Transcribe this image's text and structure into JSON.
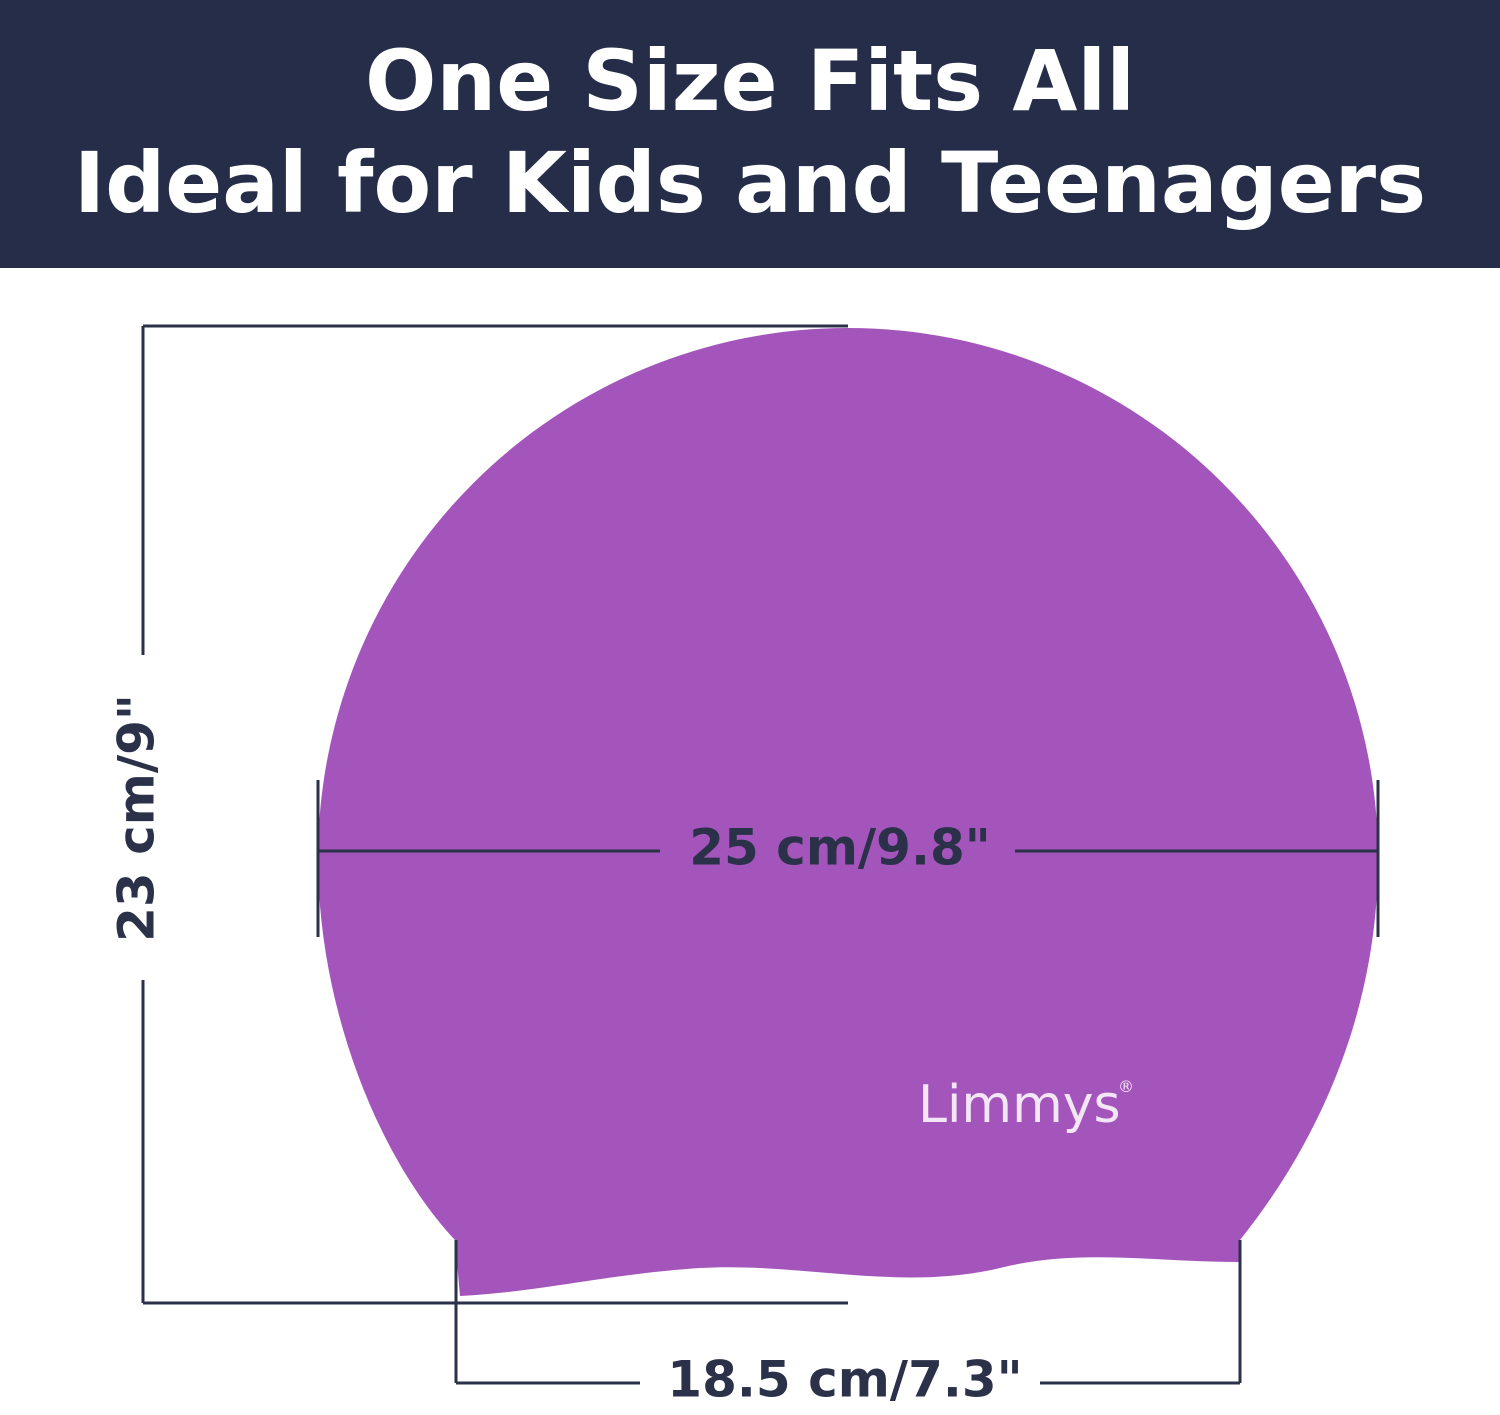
{
  "header": {
    "lines": [
      "One Size Fits All",
      "Ideal for Kids and Teenagers"
    ]
  },
  "dimensions": {
    "height": "23 cm/9\"",
    "width": "25 cm/9.8\"",
    "bottom_width": "18.5 cm/7.3\""
  },
  "brand": {
    "name": "Limmys",
    "mark": "®"
  }
}
